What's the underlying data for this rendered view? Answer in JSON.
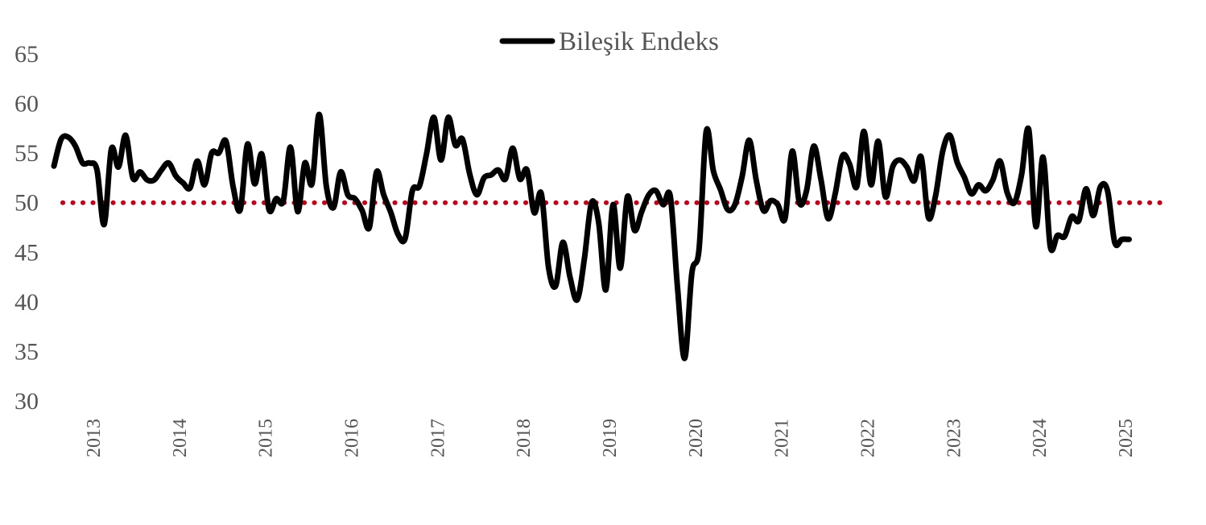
{
  "chart_data": {
    "type": "line",
    "title": "",
    "xlabel": "",
    "ylabel": "",
    "ylim": [
      30,
      65
    ],
    "yticks": [
      30,
      35,
      40,
      45,
      50,
      55,
      60,
      65
    ],
    "xticks": [
      "2013",
      "2014",
      "2015",
      "2016",
      "2017",
      "2018",
      "2019",
      "2020",
      "2021",
      "2022",
      "2023",
      "2024",
      "2025"
    ],
    "x_start": "2013-01",
    "x_step": "monthly",
    "reference_line": {
      "value": 50,
      "style": "dotted",
      "color": "#c0001a"
    },
    "legend": {
      "position": "top-center"
    },
    "grid": false,
    "series": [
      {
        "name": "Bileşik Endeks",
        "color": "#000000",
        "values": [
          53.7,
          56.4,
          56.6,
          55.7,
          54.0,
          54.0,
          53.3,
          47.8,
          55.4,
          53.6,
          56.8,
          52.5,
          53.1,
          52.3,
          52.3,
          53.3,
          54.0,
          52.7,
          52.0,
          51.5,
          54.2,
          51.8,
          55.0,
          55.0,
          56.2,
          51.6,
          49.3,
          55.9,
          51.9,
          54.9,
          49.3,
          50.4,
          50.2,
          55.6,
          49.1,
          54.0,
          51.9,
          58.9,
          51.7,
          49.5,
          53.1,
          50.8,
          50.4,
          49.2,
          47.5,
          53.1,
          50.8,
          49.0,
          46.8,
          46.4,
          51.2,
          51.7,
          55.0,
          58.6,
          54.3,
          58.6,
          55.8,
          56.4,
          52.9,
          50.8,
          52.5,
          52.8,
          53.3,
          52.4,
          55.5,
          52.4,
          53.3,
          49.0,
          50.9,
          43.5,
          41.6,
          46.0,
          42.5,
          40.2,
          44.3,
          50.0,
          48.0,
          41.2,
          49.8,
          43.4,
          50.6,
          47.2,
          49.1,
          50.8,
          51.2,
          49.8,
          50.6,
          41.4,
          34.3,
          42.9,
          45.3,
          57.2,
          53.2,
          51.3,
          49.3,
          49.8,
          52.6,
          56.3,
          52.2,
          49.2,
          50.2,
          49.8,
          48.4,
          55.2,
          50.0,
          51.2,
          55.7,
          52.4,
          48.4,
          50.9,
          54.7,
          53.9,
          51.6,
          57.2,
          51.8,
          56.2,
          50.6,
          53.6,
          54.3,
          53.6,
          52.2,
          54.6,
          48.5,
          50.7,
          55.2,
          56.8,
          54.1,
          52.6,
          50.9,
          51.8,
          51.2,
          52.3,
          54.2,
          51.0,
          50.0,
          52.8,
          57.4,
          47.6,
          54.6,
          45.6,
          46.7,
          46.6,
          48.6,
          48.2,
          51.4,
          48.7,
          51.6,
          51.2,
          46.0,
          46.3,
          46.3
        ]
      }
    ]
  }
}
